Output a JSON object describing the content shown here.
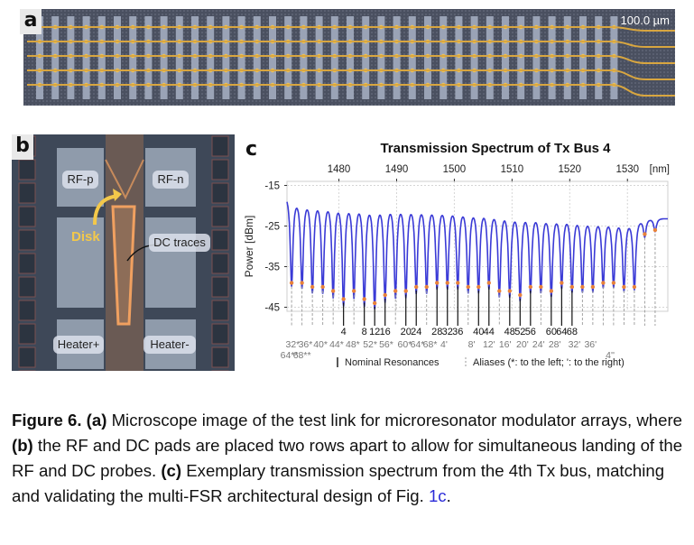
{
  "panel_a": {
    "label": "a",
    "scale_bar": "100.0 µm"
  },
  "panel_b": {
    "label": "b",
    "pads": {
      "rf_p": "RF-p",
      "rf_n": "RF-n",
      "heater_plus": "Heater+",
      "heater_minus": "Heater-"
    },
    "disk_label": "Disk",
    "dc_traces_label": "DC traces"
  },
  "panel_c": {
    "label": "c",
    "colors": {
      "trace": "#3a3ad6",
      "resonance_marker": "#e8823a",
      "nominal_line": "#111111",
      "alias_line": "#999999"
    }
  },
  "chart_data": {
    "type": "line",
    "title": "Transmission Spectrum of Tx Bus 4",
    "xlabel": "[nm]",
    "ylabel": "Power [dBm]",
    "xlim": [
      1471,
      1537
    ],
    "ylim": [
      -46,
      -14
    ],
    "x_ticks": [
      "1480",
      "1490",
      "1500",
      "1510",
      "1520",
      "1530"
    ],
    "y_ticks": [
      "-15",
      "-25",
      "-35",
      "-45"
    ],
    "grid": true,
    "series": [
      {
        "baseline_dbm": [
          [
            1471,
            -16.0
          ],
          [
            1490,
            -16.8
          ],
          [
            1505,
            -18.5
          ],
          [
            1520,
            -20.5
          ],
          [
            1537,
            -23.0
          ]
        ],
        "resonance_dips": [
          {
            "x": 1471.8,
            "depth": -39
          },
          {
            "x": 1473.6,
            "depth": -39
          },
          {
            "x": 1475.4,
            "depth": -40
          },
          {
            "x": 1477.2,
            "depth": -40
          },
          {
            "x": 1479.0,
            "depth": -41
          },
          {
            "x": 1480.8,
            "depth": -43
          },
          {
            "x": 1482.6,
            "depth": -41
          },
          {
            "x": 1484.4,
            "depth": -43
          },
          {
            "x": 1486.2,
            "depth": -44
          },
          {
            "x": 1488.0,
            "depth": -42
          },
          {
            "x": 1489.8,
            "depth": -41
          },
          {
            "x": 1491.6,
            "depth": -41
          },
          {
            "x": 1493.4,
            "depth": -40
          },
          {
            "x": 1495.2,
            "depth": -40
          },
          {
            "x": 1497.0,
            "depth": -39
          },
          {
            "x": 1498.8,
            "depth": -39
          },
          {
            "x": 1500.6,
            "depth": -39
          },
          {
            "x": 1502.4,
            "depth": -40
          },
          {
            "x": 1504.2,
            "depth": -40
          },
          {
            "x": 1506.0,
            "depth": -39
          },
          {
            "x": 1507.8,
            "depth": -41
          },
          {
            "x": 1509.6,
            "depth": -41
          },
          {
            "x": 1511.4,
            "depth": -42
          },
          {
            "x": 1513.2,
            "depth": -40
          },
          {
            "x": 1515.0,
            "depth": -40
          },
          {
            "x": 1516.8,
            "depth": -41
          },
          {
            "x": 1518.6,
            "depth": -39
          },
          {
            "x": 1520.4,
            "depth": -40
          },
          {
            "x": 1522.2,
            "depth": -40
          },
          {
            "x": 1524.0,
            "depth": -40
          },
          {
            "x": 1525.8,
            "depth": -39
          },
          {
            "x": 1527.6,
            "depth": -39
          },
          {
            "x": 1529.4,
            "depth": -40
          },
          {
            "x": 1531.2,
            "depth": -40
          },
          {
            "x": 1533.0,
            "depth": -27
          },
          {
            "x": 1534.8,
            "depth": -26
          }
        ]
      }
    ],
    "nominal_resonances": [
      {
        "label": "4",
        "x": 1480.8
      },
      {
        "label": "8",
        "x": 1484.4
      },
      {
        "label": "12",
        "x": 1486.2
      },
      {
        "label": "16",
        "x": 1488.0
      },
      {
        "label": "20",
        "x": 1491.6
      },
      {
        "label": "24",
        "x": 1493.4
      },
      {
        "label": "28",
        "x": 1497.0
      },
      {
        "label": "32",
        "x": 1498.8
      },
      {
        "label": "36",
        "x": 1500.6
      },
      {
        "label": "40",
        "x": 1504.2
      },
      {
        "label": "44",
        "x": 1506.0
      },
      {
        "label": "48",
        "x": 1509.6
      },
      {
        "label": "52",
        "x": 1511.4
      },
      {
        "label": "56",
        "x": 1513.2
      },
      {
        "label": "60",
        "x": 1516.8
      },
      {
        "label": "64",
        "x": 1518.6
      },
      {
        "label": "68",
        "x": 1520.4
      }
    ],
    "alias_labels_row1": [
      {
        "label": "32*",
        "x": 1472.0
      },
      {
        "label": "36*",
        "x": 1474.2
      },
      {
        "label": "40*",
        "x": 1476.8
      },
      {
        "label": "44*",
        "x": 1479.6
      },
      {
        "label": "48*",
        "x": 1482.4
      },
      {
        "label": "52*",
        "x": 1485.4
      },
      {
        "label": "56*",
        "x": 1488.2
      },
      {
        "label": "60*",
        "x": 1491.4
      },
      {
        "label": "64*",
        "x": 1493.6
      },
      {
        "label": "68*",
        "x": 1495.8
      },
      {
        "label": "4'",
        "x": 1498.2
      },
      {
        "label": "8'",
        "x": 1503.0
      },
      {
        "label": "12'",
        "x": 1506.0
      },
      {
        "label": "16'",
        "x": 1508.8
      },
      {
        "label": "20'",
        "x": 1511.8
      },
      {
        "label": "24'",
        "x": 1514.6
      },
      {
        "label": "28'",
        "x": 1517.4
      },
      {
        "label": "32'",
        "x": 1520.8
      },
      {
        "label": "36'",
        "x": 1523.6
      }
    ],
    "alias_labels_row2": [
      {
        "label": "64**",
        "x": 1471.4
      },
      {
        "label": "68**",
        "x": 1473.6
      },
      {
        "label": "4''",
        "x": 1527.0
      }
    ],
    "legend": {
      "nominal": "Nominal Resonances",
      "aliases": "Aliases (*: to the left; ': to the right)"
    }
  },
  "caption": {
    "figure_label": "Figure 6.",
    "a_tag": "(a)",
    "a_text": " Microscope image of the test link for microresonator modulator arrays, where ",
    "b_tag": "(b)",
    "b_text": " the RF and DC pads are placed two rows apart to allow for simultaneous landing of the RF and DC probes. ",
    "c_tag": "(c)",
    "c_text": " Exemplary transmission spectrum from the 4th Tx bus, matching and validating the multi-FSR architectural design of Fig. ",
    "fig_ref": "1c",
    "end": "."
  }
}
